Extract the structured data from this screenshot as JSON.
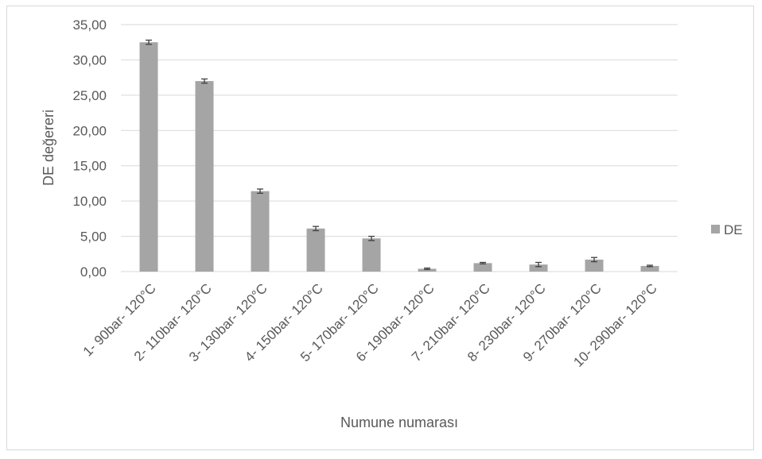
{
  "chart_data": {
    "type": "bar",
    "categories": [
      "1- 90bar- 120°C",
      "2- 110bar- 120°C",
      "3- 130bar- 120°C",
      "4- 150bar- 120°C",
      "5- 170bar- 120°C",
      "6- 190bar- 120°C",
      "7- 210bar- 120°C",
      "8- 230bar- 120°C",
      "9- 270bar- 120°C",
      "10- 290bar- 120°C"
    ],
    "series": [
      {
        "name": "DE",
        "values": [
          32.5,
          27.0,
          11.4,
          6.1,
          4.7,
          0.4,
          1.2,
          1.0,
          1.7,
          0.8
        ],
        "errors": [
          0.3,
          0.3,
          0.3,
          0.3,
          0.3,
          0.1,
          0.1,
          0.3,
          0.3,
          0.1
        ]
      }
    ],
    "xlabel": "Numune numarası",
    "ylabel": "DE değereri",
    "ylim": [
      0,
      35
    ],
    "yticks": [
      "0,00",
      "5,00",
      "10,00",
      "15,00",
      "20,00",
      "25,00",
      "30,00",
      "35,00"
    ],
    "grid": true,
    "legend_position": "right",
    "colors": {
      "bar": "#a5a5a5",
      "grid": "#d9d9d9",
      "error": "#404040",
      "text": "#595959"
    }
  }
}
